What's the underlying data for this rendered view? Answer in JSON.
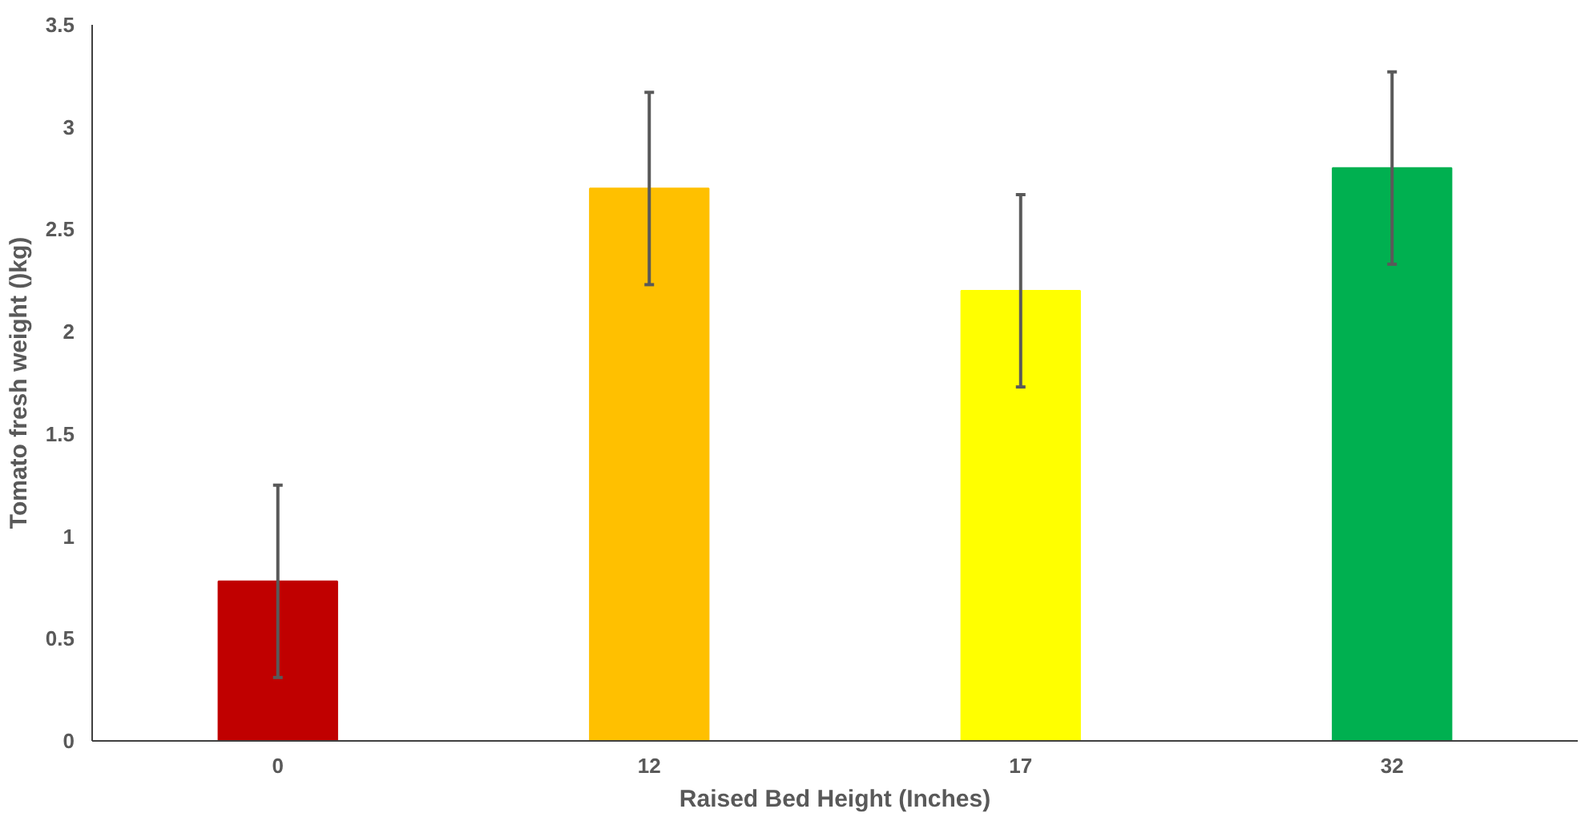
{
  "chart_data": {
    "type": "bar",
    "xlabel": "Raised Bed Height (Inches)",
    "ylabel": "Tomato fresh weight ()kg)",
    "categories": [
      "0",
      "12",
      "17",
      "32"
    ],
    "values": [
      0.78,
      2.7,
      2.2,
      2.8
    ],
    "colors": [
      "#c00000",
      "#ffc000",
      "#ffff00",
      "#00b050"
    ],
    "errors": [
      0.47,
      0.47,
      0.47,
      0.47
    ],
    "ylim": [
      0,
      3.5
    ],
    "yticks": [
      0,
      0.5,
      1,
      1.5,
      2,
      2.5,
      3,
      3.5
    ],
    "grid": false
  }
}
